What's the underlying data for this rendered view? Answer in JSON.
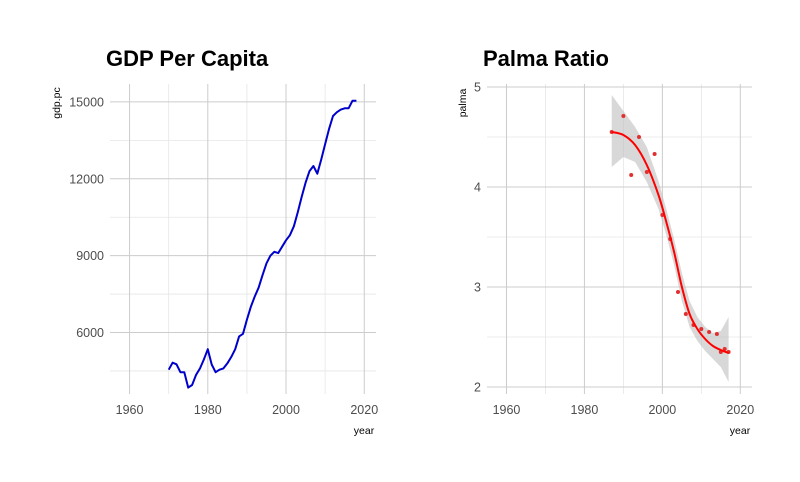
{
  "chart_data": [
    {
      "type": "line",
      "title": "GDP Per Capita",
      "xlabel": "year",
      "ylabel": "gdp.pc",
      "xlim": [
        1955,
        2023
      ],
      "ylim": [
        3600,
        15700
      ],
      "x_ticks": [
        1960,
        1980,
        2000,
        2020
      ],
      "y_ticks": [
        6000,
        9000,
        12000,
        15000
      ],
      "grid": true,
      "colors": {
        "line": "#0000cc"
      },
      "series": [
        {
          "x": [
            1970,
            1971,
            1972,
            1973,
            1974,
            1975,
            1976,
            1977,
            1978,
            1979,
            1980,
            1981,
            1982,
            1983,
            1984,
            1985,
            1986,
            1987,
            1988,
            1989,
            1990,
            1991,
            1992,
            1993,
            1994,
            1995,
            1996,
            1997,
            1998,
            1999,
            2000,
            2001,
            2002,
            2003,
            2004,
            2005,
            2006,
            2007,
            2008,
            2009,
            2010,
            2011,
            2012,
            2013,
            2014,
            2015,
            2016,
            2017,
            2018
          ],
          "values": [
            4550,
            4820,
            4760,
            4450,
            4450,
            3850,
            3950,
            4350,
            4600,
            4950,
            5350,
            4750,
            4450,
            4550,
            4600,
            4800,
            5050,
            5350,
            5850,
            5950,
            6500,
            7000,
            7400,
            7750,
            8250,
            8700,
            9000,
            9150,
            9100,
            9350,
            9600,
            9800,
            10150,
            10700,
            11300,
            11850,
            12300,
            12500,
            12200,
            12750,
            13350,
            13950,
            14450,
            14600,
            14700,
            14750,
            14750,
            15050,
            15050
          ]
        }
      ]
    },
    {
      "type": "scatter",
      "title": "Palma Ratio",
      "xlabel": "year",
      "ylabel": "palma",
      "xlim": [
        1955,
        2023
      ],
      "ylim": [
        1.93,
        5.03
      ],
      "x_ticks": [
        1960,
        1980,
        2000,
        2020
      ],
      "y_ticks": [
        2,
        3,
        4,
        5
      ],
      "grid": true,
      "colors": {
        "points": "#e03030",
        "smooth": "#ff0000",
        "ribbon": "#bebebe"
      },
      "series": [
        {
          "x": [
            1987,
            1990,
            1992,
            1994,
            1996,
            1998,
            2000,
            2002,
            2004,
            2006,
            2008,
            2010,
            2012,
            2014,
            2015,
            2016,
            2017
          ],
          "values": [
            4.55,
            4.71,
            4.12,
            4.5,
            4.15,
            4.33,
            3.72,
            3.48,
            2.95,
            2.73,
            2.62,
            2.58,
            2.55,
            2.53,
            2.35,
            2.38,
            2.35
          ]
        }
      ],
      "smooth_fit": {
        "x": [
          1987,
          1990,
          1993,
          1996,
          1999,
          2001,
          2003,
          2005,
          2007,
          2009,
          2011,
          2013,
          2015,
          2017
        ],
        "values": [
          4.55,
          4.52,
          4.42,
          4.22,
          3.92,
          3.65,
          3.35,
          3.0,
          2.73,
          2.58,
          2.48,
          2.41,
          2.37,
          2.34
        ],
        "lower": [
          4.2,
          4.3,
          4.25,
          4.05,
          3.78,
          3.52,
          3.22,
          2.86,
          2.6,
          2.46,
          2.36,
          2.28,
          2.2,
          2.05
        ],
        "upper": [
          4.92,
          4.76,
          4.6,
          4.4,
          4.06,
          3.78,
          3.48,
          3.14,
          2.86,
          2.7,
          2.6,
          2.54,
          2.56,
          2.7
        ]
      }
    }
  ]
}
